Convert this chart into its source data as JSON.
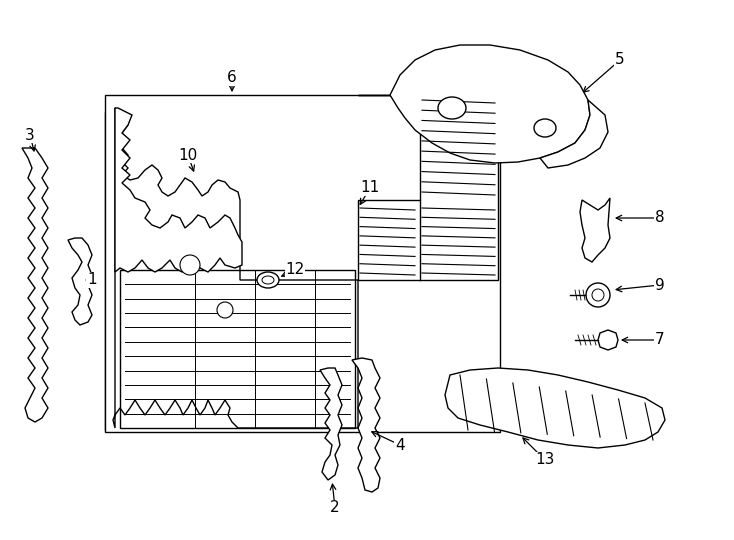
{
  "bg": "#ffffff",
  "lc": "#000000",
  "fig_w": 7.34,
  "fig_h": 5.4,
  "dpi": 100,
  "lw": 1.0,
  "fs": 11
}
